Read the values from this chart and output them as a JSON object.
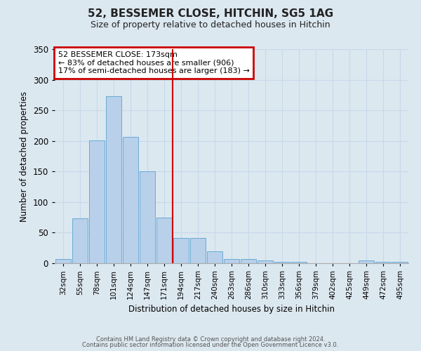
{
  "title": "52, BESSEMER CLOSE, HITCHIN, SG5 1AG",
  "subtitle": "Size of property relative to detached houses in Hitchin",
  "xlabel": "Distribution of detached houses by size in Hitchin",
  "ylabel": "Number of detached properties",
  "categories": [
    "32sqm",
    "55sqm",
    "78sqm",
    "101sqm",
    "124sqm",
    "147sqm",
    "171sqm",
    "194sqm",
    "217sqm",
    "240sqm",
    "263sqm",
    "286sqm",
    "310sqm",
    "333sqm",
    "356sqm",
    "379sqm",
    "402sqm",
    "425sqm",
    "449sqm",
    "472sqm",
    "495sqm"
  ],
  "values": [
    7,
    73,
    201,
    273,
    206,
    150,
    75,
    41,
    41,
    20,
    7,
    7,
    5,
    2,
    2,
    0,
    0,
    0,
    5,
    2,
    2
  ],
  "bar_color": "#b8d0ea",
  "bar_edge_color": "#6aaad4",
  "vline_x": 6.5,
  "vline_color": "#cc0000",
  "annotation_title": "52 BESSEMER CLOSE: 173sqm",
  "annotation_line1": "← 83% of detached houses are smaller (906)",
  "annotation_line2": "17% of semi-detached houses are larger (183) →",
  "annotation_box_color": "#cc0000",
  "annotation_bg": "#ffffff",
  "ylim": [
    0,
    350
  ],
  "yticks": [
    0,
    50,
    100,
    150,
    200,
    250,
    300,
    350
  ],
  "grid_color": "#c8d8eb",
  "background_color": "#dce8f0",
  "footer1": "Contains HM Land Registry data © Crown copyright and database right 2024.",
  "footer2": "Contains public sector information licensed under the Open Government Licence v3.0."
}
